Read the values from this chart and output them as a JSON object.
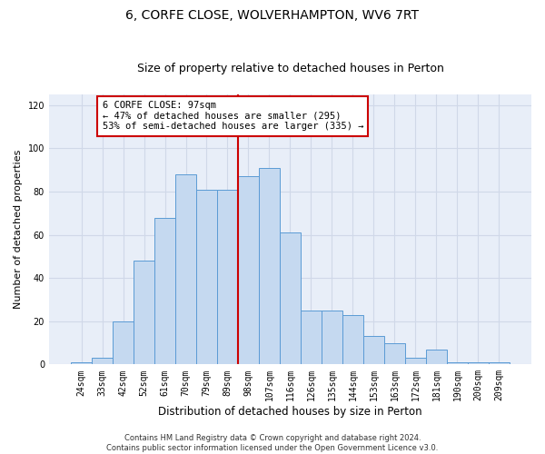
{
  "title": "6, CORFE CLOSE, WOLVERHAMPTON, WV6 7RT",
  "subtitle": "Size of property relative to detached houses in Perton",
  "xlabel": "Distribution of detached houses by size in Perton",
  "ylabel": "Number of detached properties",
  "categories": [
    "24sqm",
    "33sqm",
    "42sqm",
    "52sqm",
    "61sqm",
    "70sqm",
    "79sqm",
    "89sqm",
    "98sqm",
    "107sqm",
    "116sqm",
    "126sqm",
    "135sqm",
    "144sqm",
    "153sqm",
    "163sqm",
    "172sqm",
    "181sqm",
    "190sqm",
    "200sqm",
    "209sqm"
  ],
  "values": [
    1,
    3,
    20,
    48,
    68,
    88,
    81,
    81,
    87,
    91,
    61,
    25,
    25,
    23,
    13,
    10,
    3,
    7,
    1,
    1,
    1
  ],
  "bar_color": "#c5d9f0",
  "bar_edge_color": "#5b9bd5",
  "vline_x_index": 8,
  "vline_color": "#cc0000",
  "annotation_text": "6 CORFE CLOSE: 97sqm\n← 47% of detached houses are smaller (295)\n53% of semi-detached houses are larger (335) →",
  "annotation_box_color": "#ffffff",
  "annotation_box_edge_color": "#cc0000",
  "ylim": [
    0,
    125
  ],
  "yticks": [
    0,
    20,
    40,
    60,
    80,
    100,
    120
  ],
  "grid_color": "#d0d8e8",
  "background_color": "#e8eef8",
  "footer_text": "Contains HM Land Registry data © Crown copyright and database right 2024.\nContains public sector information licensed under the Open Government Licence v3.0.",
  "title_fontsize": 10,
  "subtitle_fontsize": 9,
  "tick_fontsize": 7,
  "ylabel_fontsize": 8,
  "xlabel_fontsize": 8.5,
  "annotation_fontsize": 7.5,
  "footer_fontsize": 6
}
